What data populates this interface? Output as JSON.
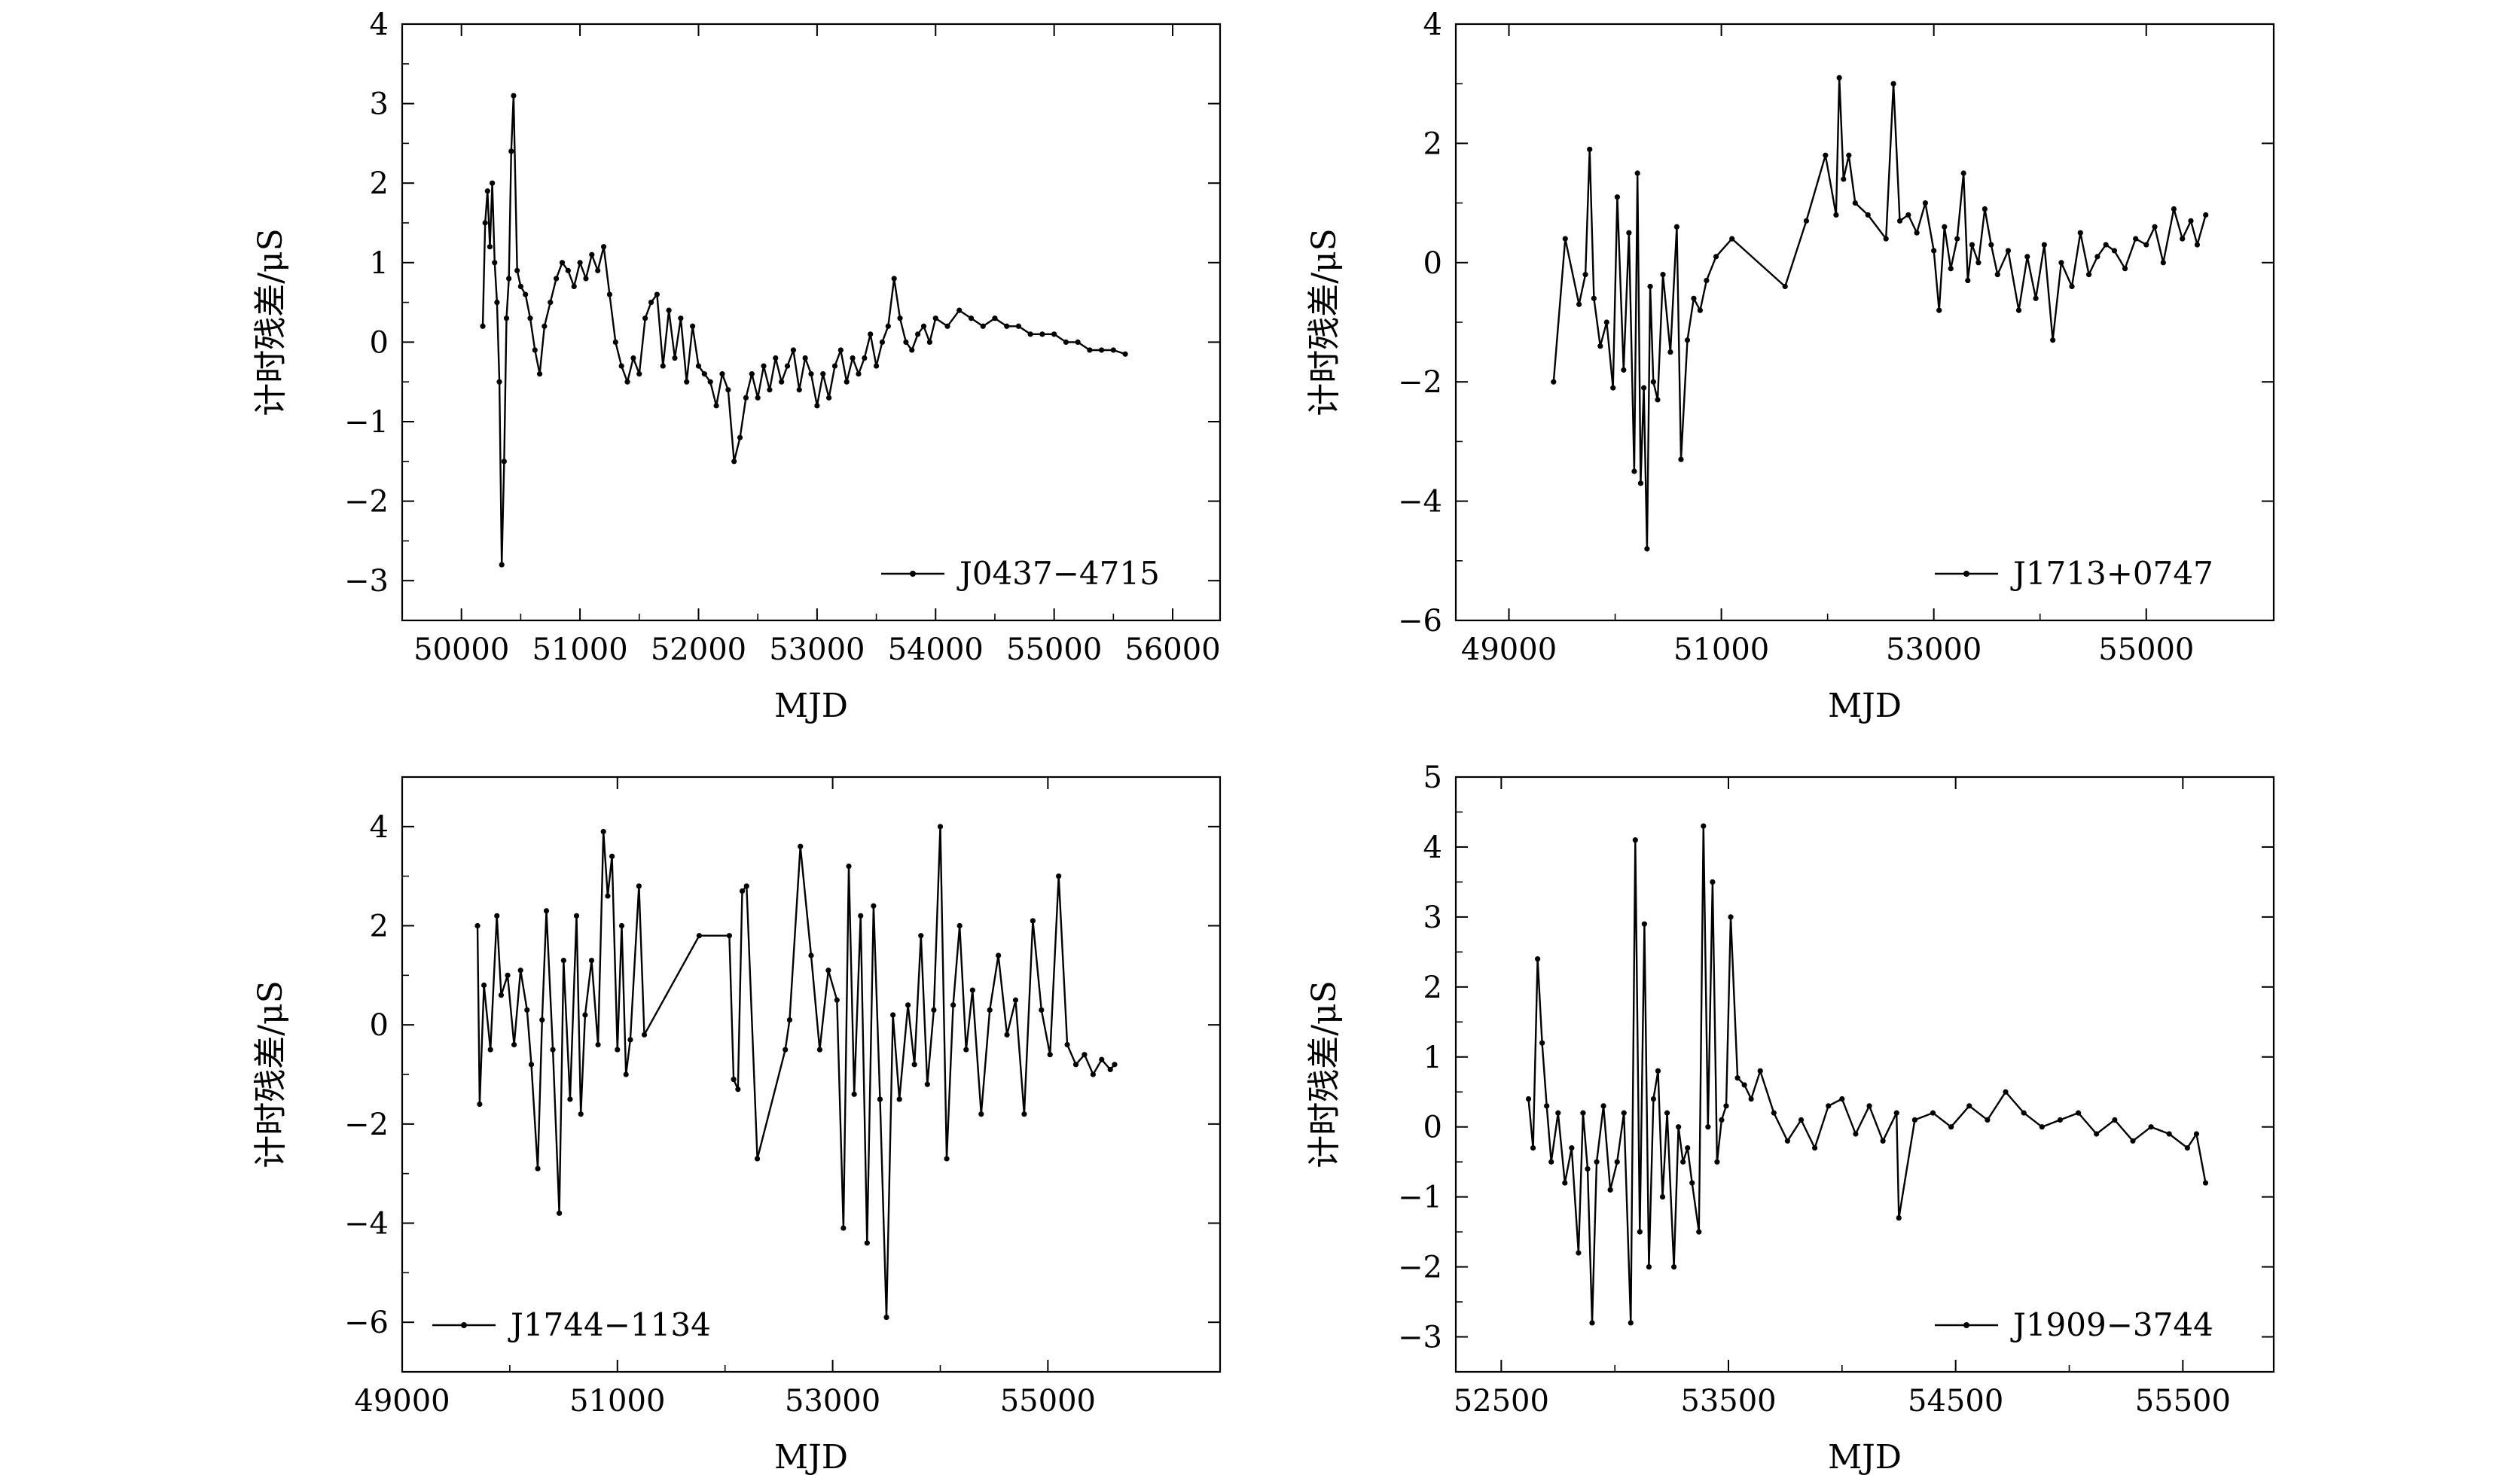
{
  "chart_data": [
    {
      "type": "line",
      "xlabel": "MJD",
      "ylabel": "计时残差/μS",
      "xlim": [
        49500,
        56400
      ],
      "ylim": [
        -3.5,
        4
      ],
      "xticks": [
        50000,
        51000,
        52000,
        53000,
        54000,
        55000,
        56000
      ],
      "yticks": [
        -3,
        -2,
        -1,
        0,
        1,
        2,
        3,
        4
      ],
      "legend_position": "bottom-right",
      "series": [
        {
          "name": "J0437−4715",
          "x": [
            50180,
            50200,
            50220,
            50240,
            50260,
            50280,
            50300,
            50320,
            50340,
            50360,
            50380,
            50400,
            50420,
            50440,
            50470,
            50500,
            50540,
            50580,
            50620,
            50660,
            50700,
            50750,
            50800,
            50850,
            50900,
            50950,
            51000,
            51050,
            51100,
            51150,
            51200,
            51250,
            51300,
            51350,
            51400,
            51450,
            51500,
            51550,
            51600,
            51650,
            51700,
            51750,
            51800,
            51850,
            51900,
            51950,
            52000,
            52050,
            52100,
            52150,
            52200,
            52250,
            52300,
            52350,
            52400,
            52450,
            52500,
            52550,
            52600,
            52650,
            52700,
            52750,
            52800,
            52850,
            52900,
            52950,
            53000,
            53050,
            53100,
            53150,
            53200,
            53250,
            53300,
            53350,
            53400,
            53450,
            53500,
            53550,
            53600,
            53650,
            53700,
            53750,
            53800,
            53850,
            53900,
            53950,
            54000,
            54100,
            54200,
            54300,
            54400,
            54500,
            54600,
            54700,
            54800,
            54900,
            55000,
            55100,
            55200,
            55300,
            55400,
            55500,
            55600
          ],
          "y": [
            0.2,
            1.5,
            1.9,
            1.2,
            2.0,
            1.0,
            0.5,
            -0.5,
            -2.8,
            -1.5,
            0.3,
            0.8,
            2.4,
            3.1,
            0.9,
            0.7,
            0.6,
            0.3,
            -0.1,
            -0.4,
            0.2,
            0.5,
            0.8,
            1.0,
            0.9,
            0.7,
            1.0,
            0.8,
            1.1,
            0.9,
            1.2,
            0.6,
            0.0,
            -0.3,
            -0.5,
            -0.2,
            -0.4,
            0.3,
            0.5,
            0.6,
            -0.3,
            0.4,
            -0.2,
            0.3,
            -0.5,
            0.2,
            -0.3,
            -0.4,
            -0.5,
            -0.8,
            -0.4,
            -0.6,
            -1.5,
            -1.2,
            -0.7,
            -0.4,
            -0.7,
            -0.3,
            -0.6,
            -0.2,
            -0.5,
            -0.3,
            -0.1,
            -0.6,
            -0.2,
            -0.4,
            -0.8,
            -0.4,
            -0.7,
            -0.3,
            -0.1,
            -0.5,
            -0.2,
            -0.4,
            -0.2,
            0.1,
            -0.3,
            0.0,
            0.2,
            0.8,
            0.3,
            0.0,
            -0.1,
            0.1,
            0.2,
            0.0,
            0.3,
            0.2,
            0.4,
            0.3,
            0.2,
            0.3,
            0.2,
            0.2,
            0.1,
            0.1,
            0.1,
            0.0,
            0.0,
            -0.1,
            -0.1,
            -0.1,
            -0.15
          ]
        }
      ]
    },
    {
      "type": "line",
      "xlabel": "MJD",
      "ylabel": "计时残差/μS",
      "xlim": [
        48500,
        56200
      ],
      "ylim": [
        -6,
        4
      ],
      "xticks": [
        49000,
        51000,
        53000,
        55000
      ],
      "yticks": [
        -6,
        -4,
        -2,
        0,
        2,
        4
      ],
      "legend_position": "bottom-right",
      "series": [
        {
          "name": "J1713+0747",
          "x": [
            49420,
            49530,
            49660,
            49720,
            49760,
            49800,
            49860,
            49920,
            49980,
            50020,
            50080,
            50130,
            50180,
            50210,
            50240,
            50270,
            50300,
            50330,
            50360,
            50400,
            50450,
            50520,
            50580,
            50620,
            50680,
            50740,
            50800,
            50860,
            50950,
            51100,
            51600,
            51800,
            51980,
            52080,
            52110,
            52150,
            52200,
            52260,
            52380,
            52550,
            52620,
            52680,
            52760,
            52840,
            52920,
            53000,
            53050,
            53100,
            53160,
            53220,
            53280,
            53320,
            53360,
            53420,
            53480,
            53540,
            53600,
            53700,
            53800,
            53880,
            53960,
            54040,
            54120,
            54200,
            54300,
            54380,
            54460,
            54540,
            54620,
            54700,
            54800,
            54900,
            55000,
            55080,
            55160,
            55260,
            55340,
            55420,
            55480,
            55560
          ],
          "y": [
            -2.0,
            0.4,
            -0.7,
            -0.2,
            1.9,
            -0.6,
            -1.4,
            -1.0,
            -2.1,
            1.1,
            -1.8,
            0.5,
            -3.5,
            1.5,
            -3.7,
            -2.1,
            -4.8,
            -0.4,
            -2.0,
            -2.3,
            -0.2,
            -1.5,
            0.6,
            -3.3,
            -1.3,
            -0.6,
            -0.8,
            -0.3,
            0.1,
            0.4,
            -0.4,
            0.7,
            1.8,
            0.8,
            3.1,
            1.4,
            1.8,
            1.0,
            0.8,
            0.4,
            3.0,
            0.7,
            0.8,
            0.5,
            1.0,
            0.2,
            -0.8,
            0.6,
            -0.1,
            0.4,
            1.5,
            -0.3,
            0.3,
            0.0,
            0.9,
            0.3,
            -0.2,
            0.2,
            -0.8,
            0.1,
            -0.6,
            0.3,
            -1.3,
            0.0,
            -0.4,
            0.5,
            -0.2,
            0.1,
            0.3,
            0.2,
            -0.1,
            0.4,
            0.3,
            0.6,
            0.0,
            0.9,
            0.4,
            0.7,
            0.3,
            0.8
          ]
        }
      ]
    },
    {
      "type": "line",
      "xlabel": "MJD",
      "ylabel": "计时残差/μS",
      "xlim": [
        49000,
        56600
      ],
      "ylim": [
        -7,
        5
      ],
      "xticks": [
        49000,
        51000,
        53000,
        55000
      ],
      "yticks": [
        -6,
        -4,
        -2,
        0,
        2,
        4
      ],
      "legend_position": "bottom-left",
      "series": [
        {
          "name": "J1744−1134",
          "x": [
            49700,
            49720,
            49760,
            49820,
            49880,
            49920,
            49980,
            50040,
            50100,
            50160,
            50200,
            50260,
            50300,
            50340,
            50400,
            50460,
            50500,
            50560,
            50620,
            50660,
            50700,
            50760,
            50820,
            50870,
            50910,
            50950,
            51000,
            51040,
            51080,
            51120,
            51200,
            51250,
            51760,
            52040,
            52080,
            52120,
            52160,
            52200,
            52300,
            52560,
            52600,
            52700,
            52800,
            52880,
            52960,
            53040,
            53100,
            53150,
            53200,
            53260,
            53320,
            53380,
            53440,
            53500,
            53560,
            53620,
            53700,
            53760,
            53820,
            53880,
            53940,
            54000,
            54060,
            54120,
            54180,
            54240,
            54300,
            54380,
            54460,
            54540,
            54620,
            54700,
            54780,
            54860,
            54940,
            55020,
            55100,
            55180,
            55260,
            55340,
            55420,
            55500,
            55580,
            55620
          ],
          "y": [
            2.0,
            -1.6,
            0.8,
            -0.5,
            2.2,
            0.6,
            1.0,
            -0.4,
            1.1,
            0.3,
            -0.8,
            -2.9,
            0.1,
            2.3,
            -0.5,
            -3.8,
            1.3,
            -1.5,
            2.2,
            -1.8,
            0.2,
            1.3,
            -0.4,
            3.9,
            2.6,
            3.4,
            -0.5,
            2.0,
            -1.0,
            -0.3,
            2.8,
            -0.2,
            1.8,
            1.8,
            -1.1,
            -1.3,
            2.7,
            2.8,
            -2.7,
            -0.5,
            0.1,
            3.6,
            1.4,
            -0.5,
            1.1,
            0.5,
            -4.1,
            3.2,
            -1.4,
            2.2,
            -4.4,
            2.4,
            -1.5,
            -5.9,
            0.2,
            -1.5,
            0.4,
            -0.8,
            1.8,
            -1.2,
            0.3,
            4.0,
            -2.7,
            0.4,
            2.0,
            -0.5,
            0.7,
            -1.8,
            0.3,
            1.4,
            -0.2,
            0.5,
            -1.8,
            2.1,
            0.3,
            -0.6,
            3.0,
            -0.4,
            -0.8,
            -0.6,
            -1.0,
            -0.7,
            -0.9,
            -0.8
          ]
        }
      ]
    },
    {
      "type": "line",
      "xlabel": "MJD",
      "ylabel": "计时残差/μS",
      "xlim": [
        52300,
        55900
      ],
      "ylim": [
        -3.5,
        5
      ],
      "xticks": [
        52500,
        53500,
        54500,
        55500
      ],
      "yticks": [
        -3,
        -2,
        -1,
        0,
        1,
        2,
        3,
        4,
        5
      ],
      "legend_position": "bottom-right",
      "series": [
        {
          "name": "J1909−3744",
          "x": [
            52620,
            52640,
            52660,
            52680,
            52700,
            52720,
            52750,
            52780,
            52810,
            52840,
            52860,
            52880,
            52900,
            52920,
            52950,
            52980,
            53010,
            53040,
            53070,
            53090,
            53110,
            53130,
            53150,
            53170,
            53190,
            53210,
            53230,
            53260,
            53280,
            53300,
            53320,
            53340,
            53370,
            53390,
            53410,
            53430,
            53450,
            53470,
            53490,
            53510,
            53540,
            53570,
            53600,
            53640,
            53700,
            53760,
            53820,
            53880,
            53940,
            54000,
            54060,
            54120,
            54180,
            54240,
            54250,
            54320,
            54400,
            54480,
            54560,
            54640,
            54720,
            54800,
            54880,
            54960,
            55040,
            55120,
            55200,
            55280,
            55360,
            55440,
            55520,
            55560,
            55600
          ],
          "y": [
            0.4,
            -0.3,
            2.4,
            1.2,
            0.3,
            -0.5,
            0.2,
            -0.8,
            -0.3,
            -1.8,
            0.2,
            -0.6,
            -2.8,
            -0.5,
            0.3,
            -0.9,
            -0.5,
            0.2,
            -2.8,
            4.1,
            -1.5,
            2.9,
            -2.0,
            0.4,
            0.8,
            -1.0,
            0.2,
            -2.0,
            0.0,
            -0.5,
            -0.3,
            -0.8,
            -1.5,
            4.3,
            0.0,
            3.5,
            -0.5,
            0.1,
            0.3,
            3.0,
            0.7,
            0.6,
            0.4,
            0.8,
            0.2,
            -0.2,
            0.1,
            -0.3,
            0.3,
            0.4,
            -0.1,
            0.3,
            -0.2,
            0.2,
            -1.3,
            0.1,
            0.2,
            0.0,
            0.3,
            0.1,
            0.5,
            0.2,
            0.0,
            0.1,
            0.2,
            -0.1,
            0.1,
            -0.2,
            0.0,
            -0.1,
            -0.3,
            -0.1,
            -0.8
          ]
        }
      ]
    }
  ]
}
